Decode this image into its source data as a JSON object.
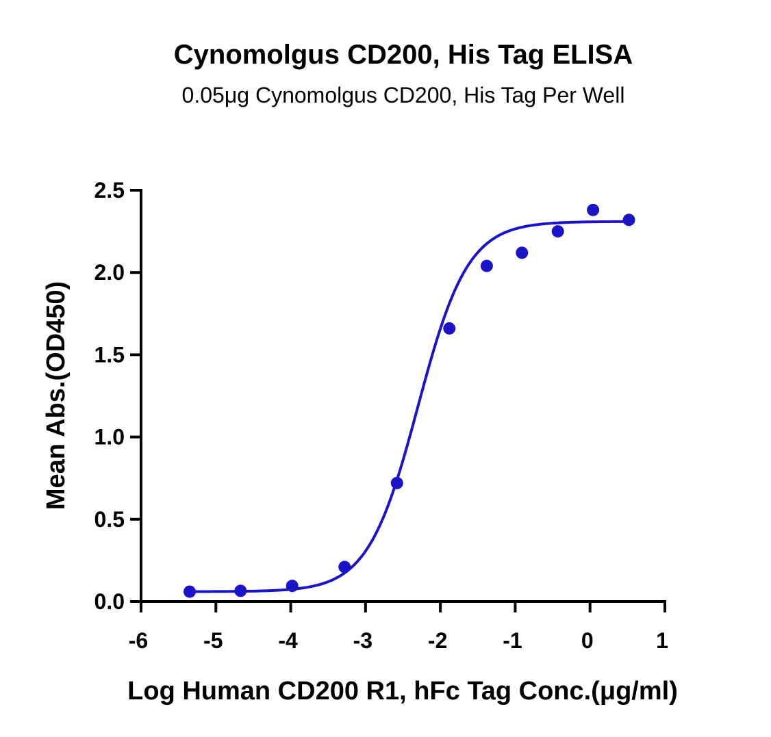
{
  "chart_data": {
    "type": "scatter",
    "title": "Cynomolgus CD200, His Tag ELISA",
    "subtitle": "0.05μg Cynomolgus CD200, His Tag Per Well",
    "xlabel": "Log Human CD200 R1, hFc Tag Conc.(μg/ml)",
    "ylabel": "Mean Abs.(OD450)",
    "xlim": [
      -6,
      1
    ],
    "ylim": [
      0,
      2.5
    ],
    "x_ticks": [
      -6,
      -5,
      -4,
      -3,
      -2,
      -1,
      0,
      1
    ],
    "x_tick_labels": [
      "-6",
      "-5",
      "-4",
      "-3",
      "-2",
      "-1",
      "0",
      "1"
    ],
    "y_ticks": [
      0,
      0.5,
      1.0,
      1.5,
      2.0,
      2.5
    ],
    "y_tick_labels": [
      "0.0",
      "0.5",
      "1.0",
      "1.5",
      "2.0",
      "2.5"
    ],
    "grid": false,
    "color": "#1a13c8",
    "series": [
      {
        "x": [
          -5.35,
          -4.67,
          -3.98,
          -3.28,
          -2.58,
          -1.88,
          -1.38,
          -0.91,
          -0.43,
          0.04,
          0.52
        ],
        "y": [
          0.06,
          0.065,
          0.095,
          0.21,
          0.72,
          1.66,
          2.04,
          2.12,
          2.25,
          2.38,
          2.32
        ]
      }
    ],
    "fit": {
      "bottom": 0.06,
      "top": 2.31,
      "logEC50": -2.3,
      "hillSlope": 1.3,
      "x_range": [
        -5.35,
        0.52
      ]
    }
  }
}
